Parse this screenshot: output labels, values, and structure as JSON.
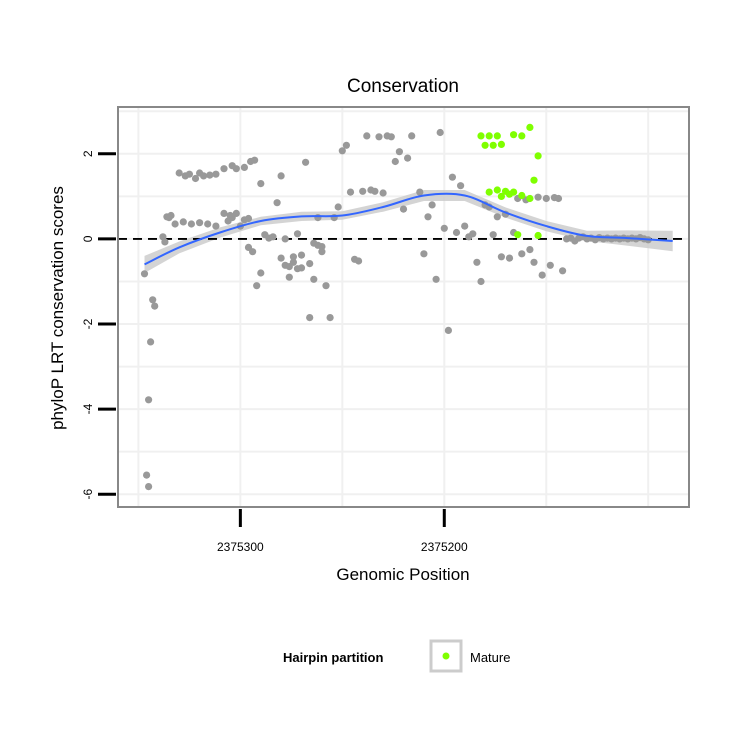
{
  "chart_data": {
    "type": "scatter",
    "title": "Conservation",
    "xlabel": "Genomic Position",
    "ylabel": "phyloP LRT conservation scores",
    "x_reversed": true,
    "xlim": [
      2375360,
      2375080
    ],
    "ylim": [
      -6.3,
      3.1
    ],
    "x_ticks": [
      2375300,
      2375200
    ],
    "x_tick_labels": [
      "2375300",
      "2375200"
    ],
    "y_ticks": [
      -6,
      -4,
      -2,
      0,
      2
    ],
    "y_tick_labels": [
      "-6",
      "-4",
      "-2",
      "0",
      "2"
    ],
    "grid": true,
    "reference_line": {
      "y": 0,
      "style": "dashed"
    },
    "colors": {
      "other": "#999999",
      "mature": "#7fff00",
      "smooth": "#3366ff",
      "band": "#cccccc",
      "panel_border": "#888888"
    },
    "legend": {
      "position": "bottom",
      "title": "Hairpin partition",
      "entries": [
        {
          "label": "Mature",
          "color": "#7fff00"
        }
      ]
    },
    "series": [
      {
        "role": "other",
        "points": [
          [
            2375346,
            -5.55
          ],
          [
            2375345,
            -5.82
          ],
          [
            2375345,
            -3.78
          ],
          [
            2375344,
            -2.42
          ],
          [
            2375343,
            -1.43
          ],
          [
            2375342,
            -1.58
          ],
          [
            2375347,
            -0.82
          ],
          [
            2375338,
            0.05
          ],
          [
            2375337,
            -0.07
          ],
          [
            2375336,
            0.52
          ],
          [
            2375335,
            0.5
          ],
          [
            2375334,
            0.55
          ],
          [
            2375330,
            1.55
          ],
          [
            2375327,
            1.48
          ],
          [
            2375325,
            1.52
          ],
          [
            2375322,
            1.42
          ],
          [
            2375320,
            1.55
          ],
          [
            2375318,
            1.48
          ],
          [
            2375315,
            1.5
          ],
          [
            2375312,
            1.52
          ],
          [
            2375308,
            1.65
          ],
          [
            2375304,
            1.72
          ],
          [
            2375302,
            1.65
          ],
          [
            2375298,
            1.68
          ],
          [
            2375295,
            1.82
          ],
          [
            2375293,
            1.85
          ],
          [
            2375290,
            1.3
          ],
          [
            2375332,
            0.35
          ],
          [
            2375328,
            0.4
          ],
          [
            2375324,
            0.35
          ],
          [
            2375320,
            0.38
          ],
          [
            2375316,
            0.35
          ],
          [
            2375312,
            0.3
          ],
          [
            2375308,
            0.6
          ],
          [
            2375305,
            0.55
          ],
          [
            2375302,
            0.6
          ],
          [
            2375298,
            0.45
          ],
          [
            2375296,
            -0.2
          ],
          [
            2375294,
            -0.3
          ],
          [
            2375292,
            -1.1
          ],
          [
            2375290,
            -0.8
          ],
          [
            2375288,
            0.1
          ],
          [
            2375286,
            0.02
          ],
          [
            2375284,
            0.05
          ],
          [
            2375282,
            0.85
          ],
          [
            2375280,
            -0.45
          ],
          [
            2375278,
            0.0
          ],
          [
            2375276,
            -0.65
          ],
          [
            2375274,
            -0.42
          ],
          [
            2375272,
            0.12
          ],
          [
            2375270,
            -0.38
          ],
          [
            2375268,
            1.8
          ],
          [
            2375266,
            -0.58
          ],
          [
            2375264,
            -0.1
          ],
          [
            2375262,
            -0.15
          ],
          [
            2375260,
            -0.18
          ],
          [
            2375258,
            -1.1
          ],
          [
            2375256,
            -1.85
          ],
          [
            2375254,
            0.5
          ],
          [
            2375252,
            0.75
          ],
          [
            2375250,
            2.07
          ],
          [
            2375248,
            2.2
          ],
          [
            2375246,
            1.1
          ],
          [
            2375244,
            -0.48
          ],
          [
            2375242,
            -0.52
          ],
          [
            2375240,
            1.12
          ],
          [
            2375238,
            2.42
          ],
          [
            2375236,
            1.15
          ],
          [
            2375234,
            1.12
          ],
          [
            2375232,
            2.4
          ],
          [
            2375230,
            1.08
          ],
          [
            2375228,
            2.42
          ],
          [
            2375226,
            2.4
          ],
          [
            2375224,
            1.82
          ],
          [
            2375222,
            2.05
          ],
          [
            2375220,
            0.7
          ],
          [
            2375218,
            1.9
          ],
          [
            2375216,
            2.42
          ],
          [
            2375212,
            1.1
          ],
          [
            2375210,
            -0.35
          ],
          [
            2375208,
            0.52
          ],
          [
            2375206,
            0.8
          ],
          [
            2375204,
            -0.95
          ],
          [
            2375202,
            2.5
          ],
          [
            2375200,
            0.25
          ],
          [
            2375198,
            -2.15
          ],
          [
            2375196,
            1.45
          ],
          [
            2375194,
            0.15
          ],
          [
            2375192,
            1.25
          ],
          [
            2375190,
            0.3
          ],
          [
            2375188,
            0.05
          ],
          [
            2375186,
            0.12
          ],
          [
            2375184,
            -0.55
          ],
          [
            2375182,
            -1.0
          ],
          [
            2375180,
            0.8
          ],
          [
            2375178,
            0.75
          ],
          [
            2375176,
            0.1
          ],
          [
            2375174,
            0.52
          ],
          [
            2375172,
            -0.42
          ],
          [
            2375170,
            0.58
          ],
          [
            2375168,
            -0.45
          ],
          [
            2375166,
            0.15
          ],
          [
            2375164,
            0.95
          ],
          [
            2375162,
            -0.35
          ],
          [
            2375160,
            0.92
          ],
          [
            2375158,
            -0.25
          ],
          [
            2375156,
            -0.55
          ],
          [
            2375154,
            0.98
          ],
          [
            2375152,
            -0.85
          ],
          [
            2375150,
            0.95
          ],
          [
            2375148,
            -0.62
          ],
          [
            2375146,
            0.97
          ],
          [
            2375144,
            0.95
          ],
          [
            2375142,
            -0.75
          ],
          [
            2375140,
            0.0
          ],
          [
            2375138,
            0.02
          ],
          [
            2375136,
            -0.05
          ],
          [
            2375134,
            0.02
          ],
          [
            2375132,
            0.05
          ],
          [
            2375130,
            0.0
          ],
          [
            2375128,
            0.02
          ],
          [
            2375126,
            -0.02
          ],
          [
            2375124,
            0.03
          ],
          [
            2375122,
            0.0
          ],
          [
            2375120,
            0.02
          ],
          [
            2375118,
            0.0
          ],
          [
            2375116,
            0.02
          ],
          [
            2375114,
            0.0
          ],
          [
            2375112,
            0.02
          ],
          [
            2375110,
            0.0
          ],
          [
            2375108,
            0.02
          ],
          [
            2375106,
            0.0
          ],
          [
            2375104,
            0.03
          ],
          [
            2375102,
            0.0
          ],
          [
            2375100,
            -0.02
          ],
          [
            2375260,
            -0.3
          ],
          [
            2375262,
            0.5
          ],
          [
            2375264,
            -0.95
          ],
          [
            2375266,
            -1.85
          ],
          [
            2375270,
            -0.68
          ],
          [
            2375272,
            -0.7
          ],
          [
            2375274,
            -0.55
          ],
          [
            2375276,
            -0.9
          ],
          [
            2375278,
            -0.62
          ],
          [
            2375280,
            1.48
          ],
          [
            2375296,
            0.48
          ],
          [
            2375300,
            0.3
          ],
          [
            2375304,
            0.5
          ],
          [
            2375306,
            0.42
          ]
        ]
      },
      {
        "role": "mature",
        "name": "Mature",
        "points": [
          [
            2375182,
            2.42
          ],
          [
            2375178,
            2.42
          ],
          [
            2375174,
            2.42
          ],
          [
            2375180,
            2.2
          ],
          [
            2375176,
            2.2
          ],
          [
            2375172,
            2.22
          ],
          [
            2375166,
            2.45
          ],
          [
            2375162,
            2.42
          ],
          [
            2375158,
            2.62
          ],
          [
            2375154,
            1.95
          ],
          [
            2375156,
            1.38
          ],
          [
            2375178,
            1.1
          ],
          [
            2375174,
            1.15
          ],
          [
            2375170,
            1.12
          ],
          [
            2375166,
            1.1
          ],
          [
            2375162,
            1.02
          ],
          [
            2375158,
            0.95
          ],
          [
            2375164,
            0.1
          ],
          [
            2375154,
            0.08
          ],
          [
            2375172,
            1.0
          ],
          [
            2375168,
            1.05
          ]
        ]
      }
    ],
    "smooth": {
      "method": "loess",
      "x": [
        2375347,
        2375330,
        2375310,
        2375290,
        2375270,
        2375250,
        2375230,
        2375210,
        2375190,
        2375170,
        2375150,
        2375130,
        2375110,
        2375088
      ],
      "y": [
        -0.6,
        -0.2,
        0.15,
        0.42,
        0.53,
        0.55,
        0.75,
        1.02,
        1.02,
        0.62,
        0.3,
        0.07,
        0.02,
        -0.05
      ],
      "se": [
        0.2,
        0.14,
        0.12,
        0.1,
        0.11,
        0.1,
        0.11,
        0.13,
        0.13,
        0.12,
        0.12,
        0.12,
        0.18,
        0.24
      ]
    }
  }
}
